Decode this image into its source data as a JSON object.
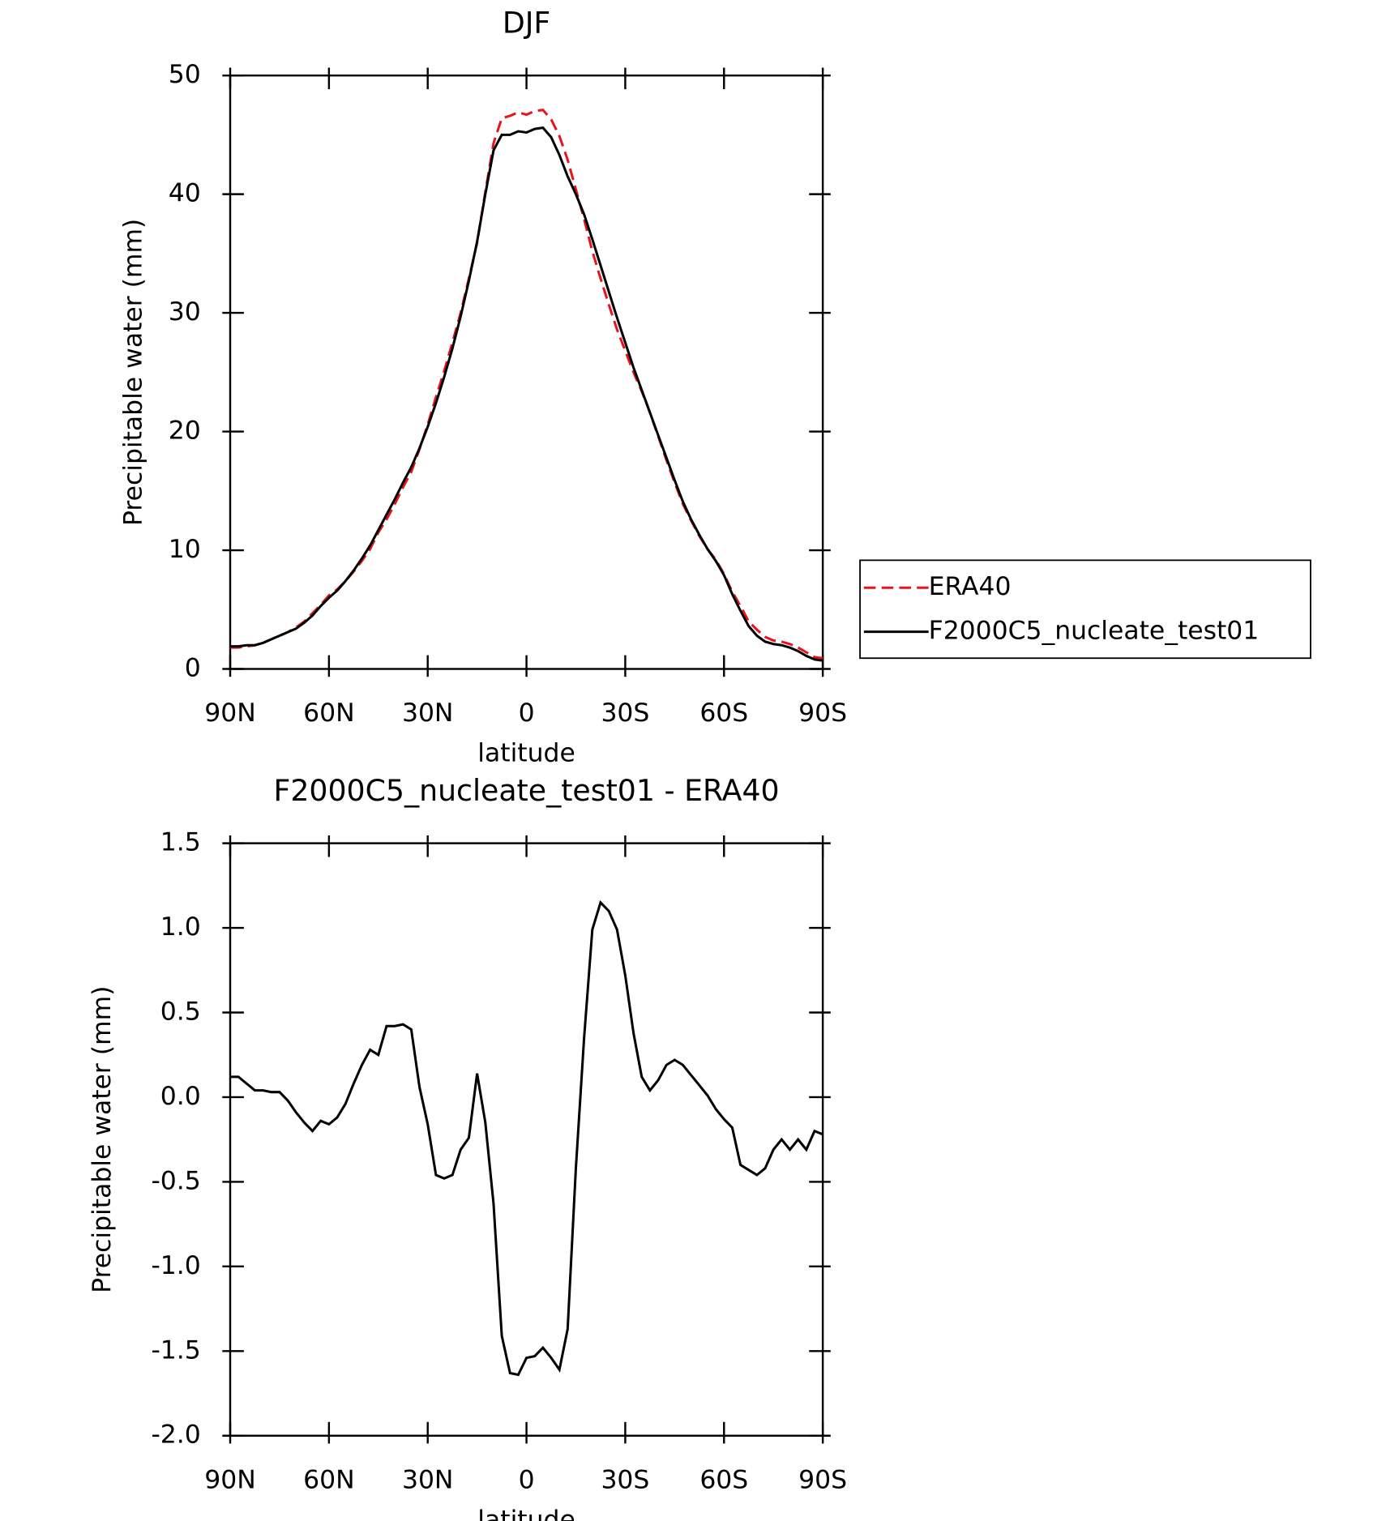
{
  "chart_data": [
    {
      "type": "line",
      "title": "DJF",
      "x_label": "latitude",
      "y_label": "Precipitable water (mm)",
      "x": [
        90,
        87.5,
        85,
        82.5,
        80,
        77.5,
        75,
        72.5,
        70,
        67.5,
        65,
        62.5,
        60,
        57.5,
        55,
        52.5,
        50,
        47.5,
        45,
        42.5,
        40,
        37.5,
        35,
        32.5,
        30,
        27.5,
        25,
        22.5,
        20,
        17.5,
        15,
        12.5,
        10,
        7.5,
        5,
        2.5,
        0,
        -2.5,
        -5,
        -7.5,
        -10,
        -12.5,
        -15,
        -17.5,
        -20,
        -22.5,
        -25,
        -27.5,
        -30,
        -32.5,
        -35,
        -37.5,
        -40,
        -42.5,
        -45,
        -47.5,
        -50,
        -52.5,
        -55,
        -57.5,
        -60,
        -62.5,
        -65,
        -67.5,
        -70,
        -72.5,
        -75,
        -77.5,
        -80,
        -82.5,
        -85,
        -87.5,
        -90
      ],
      "series": [
        {
          "name": "ERA40",
          "color": "#e8141b",
          "dash": true,
          "values": [
            1.8,
            1.8,
            1.9,
            2.0,
            2.2,
            2.5,
            2.8,
            3.1,
            3.5,
            4.0,
            4.7,
            5.4,
            6.2,
            6.7,
            7.4,
            8.2,
            9.1,
            10.1,
            11.5,
            12.6,
            13.9,
            15.3,
            16.6,
            18.5,
            20.6,
            22.9,
            25.1,
            27.5,
            30.0,
            32.9,
            35.9,
            40.2,
            44.3,
            46.4,
            46.6,
            46.9,
            46.7,
            47.0,
            47.1,
            46.3,
            44.9,
            42.9,
            40.4,
            37.9,
            35.2,
            32.9,
            30.7,
            28.6,
            26.8,
            25.0,
            23.4,
            21.6,
            19.6,
            17.6,
            15.7,
            13.9,
            12.5,
            11.2,
            10.1,
            9.2,
            8.0,
            6.5,
            5.3,
            4.0,
            3.3,
            2.7,
            2.4,
            2.3,
            2.1,
            1.8,
            1.4,
            1.0,
            0.9
          ]
        },
        {
          "name": "F2000C5_nucleate_test01",
          "color": "#000000",
          "dash": false,
          "values": [
            1.9,
            1.9,
            2.0,
            2.0,
            2.2,
            2.5,
            2.8,
            3.1,
            3.4,
            3.9,
            4.5,
            5.3,
            6.0,
            6.6,
            7.4,
            8.3,
            9.3,
            10.4,
            11.7,
            13.0,
            14.3,
            15.7,
            17.0,
            18.6,
            20.4,
            22.4,
            24.6,
            27.0,
            29.7,
            32.7,
            36.0,
            40.0,
            43.7,
            45.0,
            45.0,
            45.3,
            45.2,
            45.5,
            45.6,
            44.8,
            43.3,
            41.5,
            40.0,
            38.3,
            36.2,
            34.0,
            31.8,
            29.6,
            27.5,
            25.4,
            23.5,
            21.6,
            19.7,
            17.8,
            15.9,
            14.1,
            12.6,
            11.3,
            10.1,
            9.1,
            7.9,
            6.3,
            4.9,
            3.6,
            2.8,
            2.3,
            2.1,
            2.0,
            1.8,
            1.5,
            1.1,
            0.8,
            0.7
          ]
        }
      ],
      "xlim": [
        90,
        -90
      ],
      "xticks": [
        {
          "value": 90,
          "label": "90N"
        },
        {
          "value": 60,
          "label": "60N"
        },
        {
          "value": 30,
          "label": "30N"
        },
        0,
        {
          "value": -30,
          "label": "30S"
        },
        {
          "value": -60,
          "label": "60S"
        },
        {
          "value": -90,
          "label": "90S"
        }
      ],
      "ylim": [
        0,
        50
      ],
      "yticks": [
        0,
        10,
        20,
        30,
        40,
        50
      ],
      "legend": "right"
    },
    {
      "type": "line",
      "title": "F2000C5_nucleate_test01 - ERA40",
      "x_label": "latitude",
      "y_label": "Precipitable water (mm)",
      "x": [
        90,
        87.5,
        85,
        82.5,
        80,
        77.5,
        75,
        72.5,
        70,
        67.5,
        65,
        62.5,
        60,
        57.5,
        55,
        52.5,
        50,
        47.5,
        45,
        42.5,
        40,
        37.5,
        35,
        32.5,
        30,
        27.5,
        25,
        22.5,
        20,
        17.5,
        15,
        12.5,
        10,
        7.5,
        5,
        2.5,
        0,
        -2.5,
        -5,
        -7.5,
        -10,
        -12.5,
        -15,
        -17.5,
        -20,
        -22.5,
        -25,
        -27.5,
        -30,
        -32.5,
        -35,
        -37.5,
        -40,
        -42.5,
        -45,
        -47.5,
        -50,
        -52.5,
        -55,
        -57.5,
        -60,
        -62.5,
        -65,
        -67.5,
        -70,
        -72.5,
        -75,
        -77.5,
        -80,
        -82.5,
        -85,
        -87.5,
        -90
      ],
      "color": "#000000",
      "values": [
        0.12,
        0.12,
        0.08,
        0.04,
        0.04,
        0.03,
        0.03,
        -0.02,
        -0.09,
        -0.15,
        -0.2,
        -0.14,
        -0.16,
        -0.12,
        -0.04,
        0.08,
        0.19,
        0.28,
        0.25,
        0.42,
        0.42,
        0.43,
        0.4,
        0.06,
        -0.16,
        -0.46,
        -0.48,
        -0.46,
        -0.31,
        -0.24,
        0.14,
        -0.15,
        -0.63,
        -1.41,
        -1.63,
        -1.64,
        -1.54,
        -1.53,
        -1.48,
        -1.54,
        -1.61,
        -1.37,
        -0.42,
        0.35,
        0.99,
        1.15,
        1.1,
        0.99,
        0.72,
        0.38,
        0.12,
        0.04,
        0.1,
        0.19,
        0.22,
        0.19,
        0.13,
        0.07,
        0.01,
        -0.07,
        -0.13,
        -0.18,
        -0.4,
        -0.43,
        -0.46,
        -0.42,
        -0.31,
        -0.25,
        -0.31,
        -0.25,
        -0.31,
        -0.2,
        -0.22
      ],
      "xlim": [
        90,
        -90
      ],
      "xticks": [
        {
          "value": 90,
          "label": "90N"
        },
        {
          "value": 60,
          "label": "60N"
        },
        {
          "value": 30,
          "label": "30N"
        },
        0,
        {
          "value": -30,
          "label": "30S"
        },
        {
          "value": -60,
          "label": "60S"
        },
        {
          "value": -90,
          "label": "90S"
        }
      ],
      "ylim": [
        -2,
        1.5
      ],
      "yticks": [
        1.5,
        {
          "value": 1,
          "label": "1.0"
        },
        0.5,
        {
          "value": 0,
          "label": "0.0"
        },
        -0.5,
        {
          "value": -1,
          "label": "-1.0"
        },
        -1.5,
        {
          "value": -2,
          "label": "-2.0"
        }
      ]
    }
  ]
}
